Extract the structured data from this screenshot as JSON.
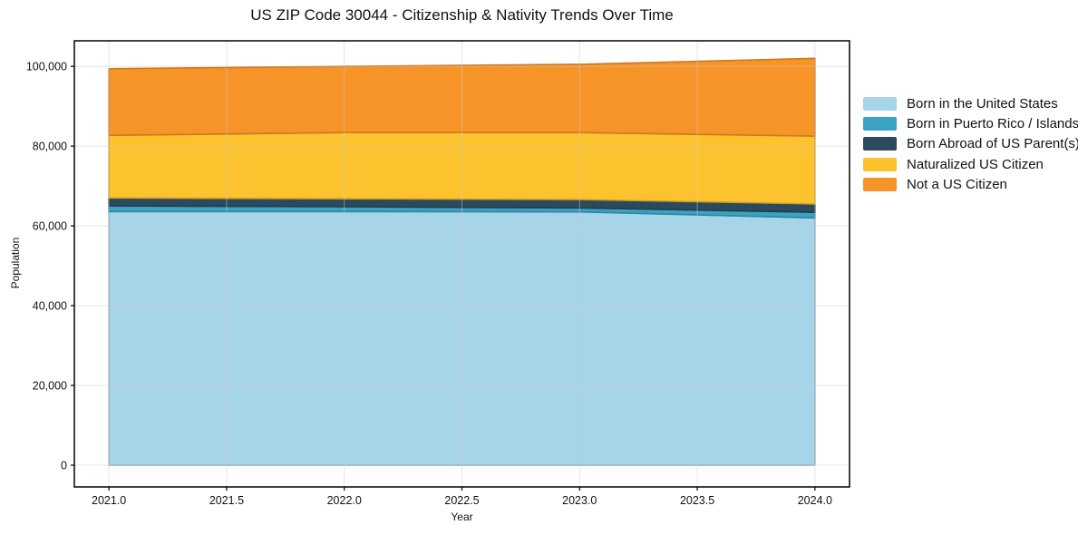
{
  "title": "US ZIP Code 30044 - Citizenship & Nativity Trends Over Time",
  "chart_data": {
    "type": "area",
    "stacked": true,
    "title": "US ZIP Code 30044 - Citizenship & Nativity Trends Over Time",
    "xlabel": "Year",
    "ylabel": "Population",
    "x": [
      2021,
      2022,
      2023,
      2024
    ],
    "series": [
      {
        "name": "Born in the United States",
        "color": "#a6d4e8",
        "values": [
          63600,
          63600,
          63500,
          62000
        ]
      },
      {
        "name": "Born in Puerto Rico / Islands",
        "color": "#3aa3c3",
        "values": [
          1400,
          1200,
          1000,
          1400
        ]
      },
      {
        "name": "Born Abroad of US Parent(s)",
        "color": "#2b4a5e",
        "values": [
          2000,
          2000,
          2100,
          2100
        ]
      },
      {
        "name": "Naturalized US Citizen",
        "color": "#fdc32f",
        "values": [
          15700,
          16600,
          16800,
          17000
        ]
      },
      {
        "name": "Not a US Citizen",
        "color": "#f79428",
        "values": [
          16700,
          16600,
          17100,
          19500
        ]
      }
    ],
    "x_ticks": [
      2021.0,
      2021.5,
      2022.0,
      2022.5,
      2023.0,
      2023.5,
      2024.0
    ],
    "x_tick_labels": [
      "2021.0",
      "2021.5",
      "2022.0",
      "2022.5",
      "2023.0",
      "2023.5",
      "2024.0"
    ],
    "y_ticks": [
      0,
      20000,
      40000,
      60000,
      80000,
      100000
    ],
    "y_tick_labels": [
      "0",
      "20,000",
      "40,000",
      "60,000",
      "80,000",
      "100,000"
    ],
    "xlim": [
      2020.853,
      2024.147
    ],
    "ylim": [
      -5450,
      106400
    ],
    "grid": true,
    "legend_position": "right",
    "frame_color": "#000000",
    "grid_color": "#cccccc",
    "text_color": "#111111"
  }
}
